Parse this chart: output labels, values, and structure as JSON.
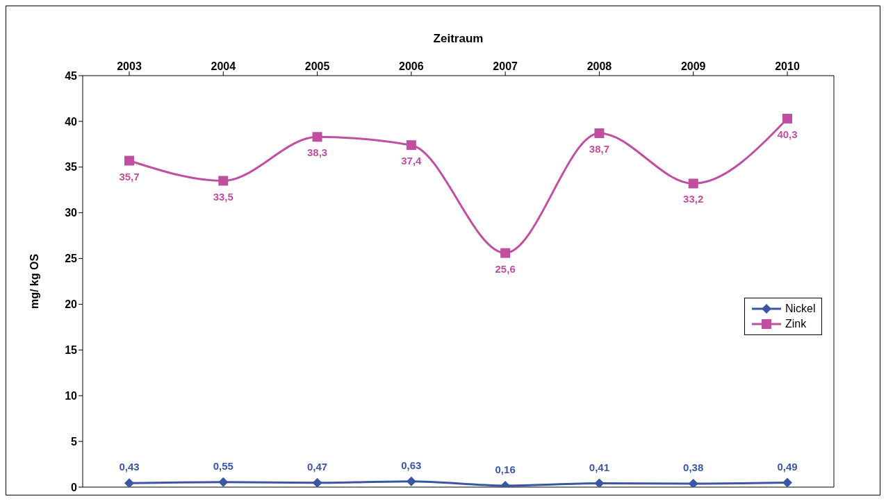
{
  "chart_data": {
    "type": "line",
    "xlabel": "Zeitraum",
    "ylabel": "mg/ kg OS",
    "categories": [
      "2003",
      "2004",
      "2005",
      "2006",
      "2007",
      "2008",
      "2009",
      "2010"
    ],
    "series": [
      {
        "name": "Nickel",
        "color": "#3a56a5",
        "marker": "diamond",
        "values": [
          0.43,
          0.55,
          0.47,
          0.63,
          0.16,
          0.41,
          0.38,
          0.49
        ],
        "value_labels": [
          "0,43",
          "0,55",
          "0,47",
          "0,63",
          "0,16",
          "0,41",
          "0,38",
          "0,49"
        ]
      },
      {
        "name": "Zink",
        "color": "#c04fa0",
        "marker": "square",
        "values": [
          35.7,
          33.5,
          38.3,
          37.4,
          25.6,
          38.7,
          33.2,
          40.3
        ],
        "value_labels": [
          "35,7",
          "33,5",
          "38,3",
          "37,4",
          "25,6",
          "38,7",
          "33,2",
          "40,3"
        ]
      }
    ],
    "ylim": [
      0,
      45
    ],
    "yticks": [
      0,
      5,
      10,
      15,
      20,
      25,
      30,
      35,
      40,
      45
    ],
    "grid": false,
    "legend": "right"
  }
}
